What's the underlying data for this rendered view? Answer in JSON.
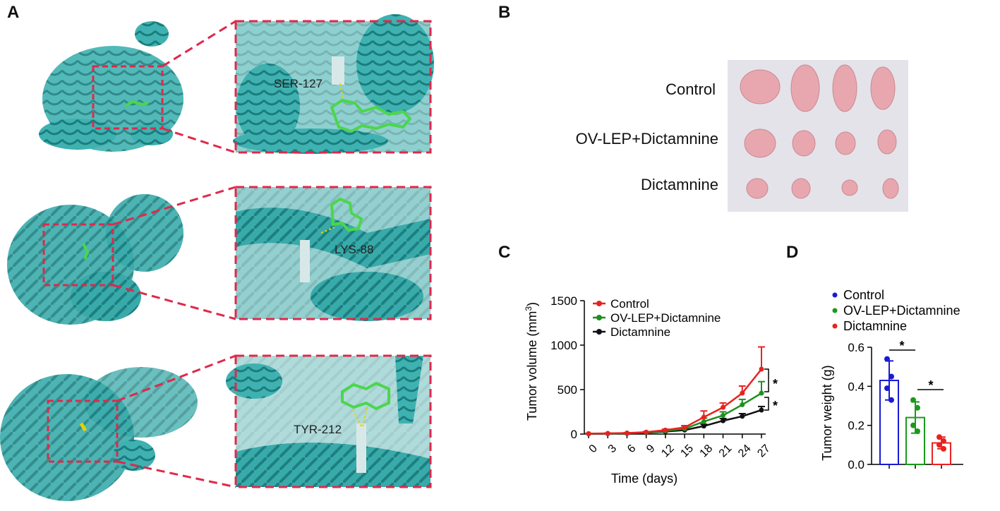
{
  "panels": {
    "A": {
      "letter": "A",
      "rows": [
        {
          "residue": "SER-127"
        },
        {
          "residue": "LYS-88"
        },
        {
          "residue": "TYR-212"
        }
      ]
    },
    "B": {
      "letter": "B",
      "row_labels": [
        "Control",
        "OV-LEP+Dictamnine",
        "Dictamnine"
      ]
    },
    "C": {
      "letter": "C"
    },
    "D": {
      "letter": "D"
    }
  },
  "colors": {
    "protein": "#2aa3a3",
    "ligand": "#4cd64c",
    "box": "#e0284a",
    "control_c": "#e8231f",
    "ovlep_c": "#1f8f1f",
    "dict_c": "#111111",
    "control_d": "#1a1ad1",
    "ovlep_d": "#1a9a1a",
    "dict_d": "#e8231f"
  },
  "chart_data": [
    {
      "type": "line",
      "panel": "C",
      "xlabel": "Time (days)",
      "ylabel_main": "Tumor volume (mm",
      "ylabel_sup": "3",
      "ylabel_end": ")",
      "x": [
        0,
        3,
        6,
        9,
        12,
        15,
        18,
        21,
        24,
        27
      ],
      "xticks": [
        "0",
        "3",
        "6",
        "9",
        "12",
        "15",
        "18",
        "21",
        "24",
        "27"
      ],
      "ylim": [
        0,
        1500
      ],
      "yticks": [
        "0",
        "500",
        "1000",
        "1500"
      ],
      "legend": "top-left",
      "series": [
        {
          "name": "Control",
          "values": [
            5,
            8,
            12,
            22,
            45,
            75,
            190,
            300,
            460,
            730
          ],
          "err": [
            2,
            3,
            4,
            6,
            10,
            20,
            70,
            50,
            80,
            250
          ]
        },
        {
          "name": "OV-LEP+Dictamnine",
          "values": [
            4,
            6,
            10,
            18,
            35,
            60,
            140,
            210,
            330,
            460
          ],
          "err": [
            2,
            3,
            4,
            5,
            8,
            15,
            40,
            40,
            60,
            130
          ]
        },
        {
          "name": "Dictamnine",
          "values": [
            3,
            5,
            8,
            15,
            28,
            45,
            90,
            150,
            200,
            270
          ],
          "err": [
            1,
            2,
            3,
            4,
            6,
            10,
            20,
            25,
            30,
            40
          ]
        }
      ],
      "significance": [
        "*",
        "*"
      ]
    },
    {
      "type": "bar",
      "panel": "D",
      "ylabel": "Tumor weight (g)",
      "categories": [
        "Control",
        "OV-LEP+Dictamnine",
        "Dictamnine"
      ],
      "values": [
        0.43,
        0.24,
        0.11
      ],
      "sd": [
        0.1,
        0.08,
        0.03
      ],
      "points": [
        [
          0.54,
          0.45,
          0.39,
          0.33
        ],
        [
          0.33,
          0.29,
          0.2,
          0.17
        ],
        [
          0.14,
          0.12,
          0.1,
          0.08
        ]
      ],
      "ylim": [
        0,
        0.6
      ],
      "yticks": [
        "0.0",
        "0.2",
        "0.4",
        "0.6"
      ],
      "legend": "top",
      "significance": [
        "*",
        "*"
      ]
    }
  ]
}
